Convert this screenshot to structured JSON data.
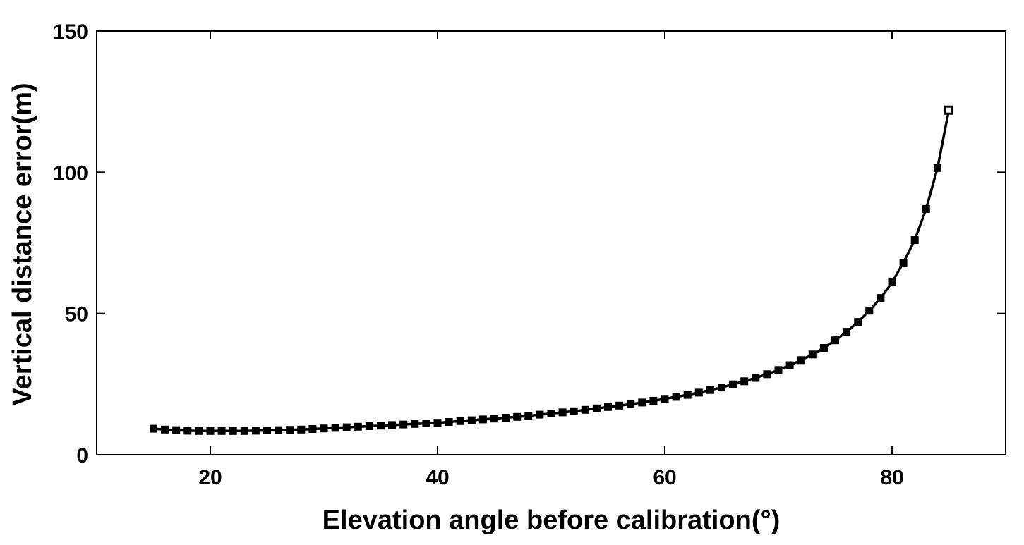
{
  "chart_data": {
    "type": "line",
    "title": "",
    "xlabel": "Elevation angle before calibration(°)",
    "ylabel": "Vertical distance error(m)",
    "xlim": [
      10,
      90
    ],
    "ylim": [
      0,
      150
    ],
    "xticks": [
      20,
      40,
      60,
      80
    ],
    "xtick_labels": [
      "20",
      "40",
      "60",
      "80"
    ],
    "yticks": [
      0,
      50,
      100,
      150
    ],
    "ytick_labels": [
      "0",
      "50",
      "100",
      "150"
    ],
    "grid": false,
    "legend": null,
    "colors": {
      "line": "#000000",
      "axes": "#000000",
      "background": "#ffffff"
    },
    "series": [
      {
        "name": "Vertical distance error",
        "marker": "square",
        "x": [
          15,
          16,
          17,
          18,
          19,
          20,
          21,
          22,
          23,
          24,
          25,
          26,
          27,
          28,
          29,
          30,
          31,
          32,
          33,
          34,
          35,
          36,
          37,
          38,
          39,
          40,
          41,
          42,
          43,
          44,
          45,
          46,
          47,
          48,
          49,
          50,
          51,
          52,
          53,
          54,
          55,
          56,
          57,
          58,
          59,
          60,
          61,
          62,
          63,
          64,
          65,
          66,
          67,
          68,
          69,
          70,
          71,
          72,
          73,
          74,
          75,
          76,
          77,
          78,
          79,
          80,
          81,
          82,
          83,
          84,
          85
        ],
        "y": [
          9.2,
          8.9,
          8.7,
          8.5,
          8.4,
          8.4,
          8.4,
          8.4,
          8.4,
          8.5,
          8.6,
          8.7,
          8.8,
          8.9,
          9.1,
          9.3,
          9.5,
          9.7,
          9.9,
          10.1,
          10.3,
          10.5,
          10.7,
          10.9,
          11.1,
          11.3,
          11.6,
          11.9,
          12.2,
          12.5,
          12.8,
          13.1,
          13.4,
          13.8,
          14.2,
          14.6,
          15.0,
          15.4,
          15.9,
          16.4,
          16.9,
          17.4,
          17.9,
          18.5,
          19.1,
          19.8,
          20.5,
          21.2,
          22.0,
          22.9,
          23.8,
          24.9,
          26.0,
          27.2,
          28.5,
          30.0,
          31.7,
          33.5,
          35.5,
          37.8,
          40.5,
          43.5,
          47.0,
          51.0,
          55.5,
          61.0,
          68.0,
          76.0,
          87.0,
          101.5,
          122.0
        ]
      }
    ]
  }
}
